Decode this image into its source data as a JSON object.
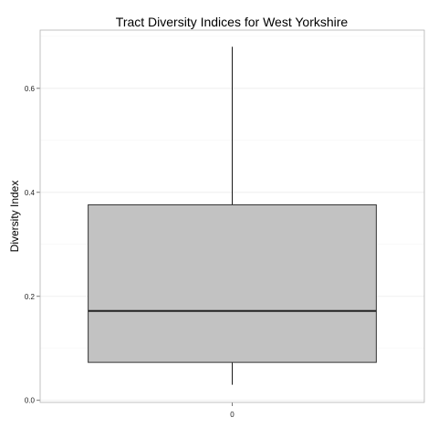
{
  "chart_data": {
    "type": "boxplot",
    "title": "Tract Diversity Indices for West Yorkshire",
    "xlabel": "",
    "ylabel": "Diversity Index",
    "categories": [
      "0"
    ],
    "boxes": [
      {
        "category": "0",
        "whisker_low": 0.03,
        "q1": 0.073,
        "median": 0.172,
        "q3": 0.376,
        "whisker_high": 0.68
      }
    ],
    "y_ticks": [
      "0.0",
      "0.2",
      "0.4",
      "0.6"
    ],
    "ylim": [
      -0.004,
      0.712
    ],
    "grid": true,
    "box_fill": "#c2c2c2"
  }
}
